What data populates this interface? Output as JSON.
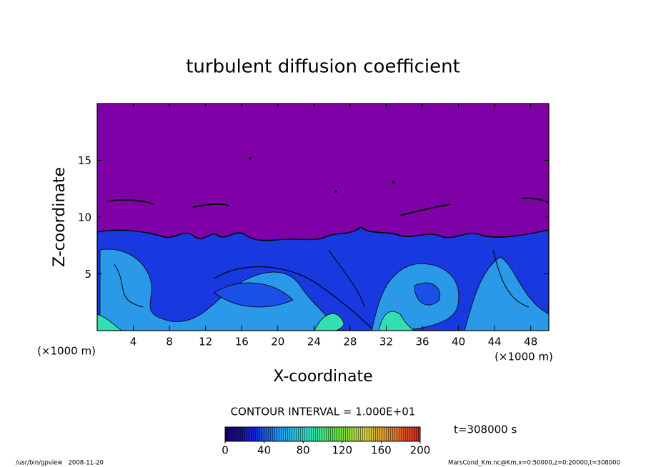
{
  "chart_data": {
    "type": "contour",
    "title": "turbulent diffusion coefficient",
    "x_label": "X-coordinate",
    "y_label": "Z-coordinate",
    "x_unit_left": "(×1000 m)",
    "x_unit_right": "(×1000 m)",
    "xlim": [
      0,
      50
    ],
    "xticks": [
      4,
      8,
      12,
      16,
      20,
      24,
      28,
      32,
      36,
      40,
      44,
      48
    ],
    "ylim": [
      0,
      20
    ],
    "yticks": [
      5,
      10,
      15
    ],
    "background_color": "#8000a8",
    "contour_interval": "CONTOUR INTERVAL = 1.000E+01",
    "time": "t=308000 s",
    "colorbar": {
      "lim": [
        0,
        200
      ],
      "ticks": [
        0,
        40,
        80,
        120,
        160,
        200
      ],
      "colors": [
        "#1a0060",
        "#1420d0",
        "#20a0f0",
        "#30e0c0",
        "#60e040",
        "#d0d040",
        "#e08030",
        "#d02020"
      ]
    }
  },
  "footer": {
    "left": "/usr/bin/gpview   2008-11-20",
    "right": "MarsCond_Km.nc@Km,x=0:50000,z=0:20000,t=308000"
  }
}
